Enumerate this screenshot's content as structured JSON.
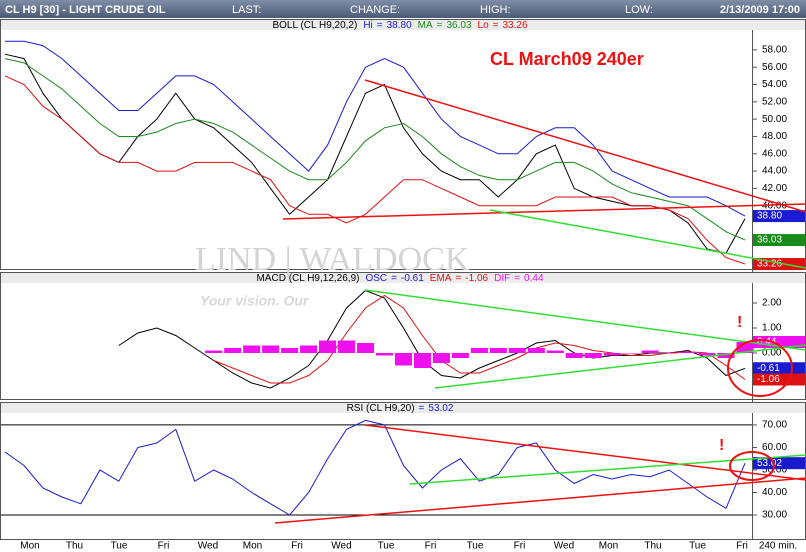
{
  "header": {
    "symbol": "CL H9 [30] - LIGHT CRUDE OIL",
    "fields": [
      "LAST:",
      "CHANGE:",
      "HIGH:",
      "LOW:"
    ],
    "datetime": "2/13/2009 17:00"
  },
  "watermark": [
    "LIND | WALDOCK",
    "Your vision. Our"
  ],
  "equals": "=",
  "x_axis": {
    "labels": [
      "Mon",
      "Thu",
      "Tue",
      "Fri",
      "Wed",
      "Mon",
      "Fri",
      "Wed",
      "Tue",
      "Fri",
      "Tue",
      "Fri",
      "Wed",
      "Mon",
      "Thu",
      "Tue",
      "Fri"
    ],
    "unit": "240 min."
  },
  "chart_data": [
    {
      "type": "line",
      "title": "BOLL (CL H9,20,2)",
      "annotation": "CL March09 240er",
      "ylim": [
        32.8,
        60.3
      ],
      "yticks": [
        {
          "value": 40,
          "label": "40.00"
        },
        {
          "value": 42,
          "label": "42.00"
        },
        {
          "value": 44,
          "label": "44.00"
        },
        {
          "value": 46,
          "label": "46.00"
        },
        {
          "value": 48,
          "label": "48.00"
        },
        {
          "value": 50,
          "label": "50.00"
        },
        {
          "value": 52,
          "label": "52.00"
        },
        {
          "value": 54,
          "label": "54.00"
        },
        {
          "value": 56,
          "label": "56.00"
        },
        {
          "value": 58,
          "label": "58.00"
        }
      ],
      "series": [
        {
          "values": [
            57.5,
            57,
            53,
            50,
            48,
            46,
            45,
            48,
            50,
            53,
            50,
            49,
            47,
            45,
            42,
            39,
            41,
            43,
            48,
            53,
            54,
            49,
            46,
            44,
            43,
            43,
            41,
            43,
            46,
            47,
            42,
            41,
            40.5,
            40,
            40,
            39.5,
            38,
            35,
            34.5,
            38.5
          ],
          "color": "#000000"
        },
        {
          "name": "Hi",
          "color": "#1a1ad0",
          "readout": {
            "value": 38.8,
            "label": "38.80"
          },
          "values": [
            59,
            59,
            58.5,
            57,
            55,
            53,
            51,
            51,
            53,
            55,
            55,
            54,
            52,
            50,
            48,
            46,
            44,
            47,
            52,
            56,
            57,
            56,
            53,
            50,
            48,
            47,
            46,
            46,
            48,
            49,
            49,
            47,
            44,
            43,
            42,
            41,
            41,
            41,
            40,
            38.8
          ]
        },
        {
          "name": "MA",
          "color": "#1a8a1a",
          "readout": {
            "value": 36.03,
            "label": "36.03"
          },
          "values": [
            57,
            56.5,
            55,
            53.5,
            51.5,
            49.5,
            48,
            48,
            48.5,
            49.5,
            50,
            49.5,
            48.5,
            47,
            45.5,
            44,
            43,
            43,
            45,
            47.5,
            49,
            49.5,
            48,
            46,
            44.5,
            43.5,
            43,
            43,
            44,
            45,
            45,
            44,
            42.5,
            41.5,
            41,
            40.5,
            40,
            38.5,
            37,
            36.03
          ]
        },
        {
          "name": "Lo",
          "color": "#dd1111",
          "readout": {
            "value": 33.26,
            "label": "33.26"
          },
          "values": [
            55,
            54,
            51.5,
            50,
            48,
            46,
            45,
            45,
            44,
            44,
            45,
            45,
            45,
            44,
            43,
            40,
            39,
            39,
            38,
            39,
            41,
            43,
            43,
            42,
            41,
            40,
            40,
            40,
            40,
            41,
            41,
            41,
            41,
            40,
            40,
            39.5,
            38.5,
            36,
            34,
            33.26
          ]
        }
      ]
    },
    {
      "type": "line",
      "title": "MACD (CL H9,12,26,9)",
      "annotation": "!",
      "ylim": [
        -1.8,
        2.8
      ],
      "yticks": [
        {
          "value": 2,
          "label": "2.00"
        },
        {
          "value": 1,
          "label": "1.00"
        },
        {
          "value": 0,
          "label": "0.00"
        }
      ],
      "series": [
        {
          "name": "OSC",
          "color": "#1a1ad0",
          "line_color": "#000000",
          "readout": {
            "value": -0.61,
            "label": "-0.61"
          },
          "values": [
            null,
            null,
            null,
            null,
            null,
            null,
            0.3,
            0.8,
            1.0,
            0.7,
            0.2,
            -0.3,
            -0.8,
            -1.2,
            -1.4,
            -1.0,
            -0.5,
            0.5,
            1.8,
            2.5,
            2.2,
            1.0,
            -0.3,
            -0.9,
            -1.0,
            -0.6,
            -0.3,
            0,
            0.4,
            0.5,
            0,
            -0.2,
            -0.1,
            -0.1,
            0,
            0,
            0.1,
            -0.2,
            -0.9,
            -0.61
          ]
        },
        {
          "name": "EMA",
          "color": "#dd1111",
          "readout": {
            "value": -1.06,
            "label": "-1.06"
          },
          "values": [
            null,
            null,
            null,
            null,
            null,
            null,
            null,
            null,
            null,
            null,
            null,
            -0.3,
            -0.6,
            -0.9,
            -1.2,
            -1.2,
            -0.9,
            -0.3,
            0.8,
            1.8,
            2.3,
            1.8,
            0.7,
            -0.3,
            -0.8,
            -0.8,
            -0.5,
            -0.2,
            0.2,
            0.4,
            0.3,
            0.1,
            0,
            -0.1,
            -0.1,
            0,
            0.05,
            0,
            -0.5,
            -1.06
          ]
        },
        {
          "name": "DIF",
          "color": "#ee11ee",
          "style": "histogram",
          "readout": {
            "value": 0.44,
            "label": "0.44"
          },
          "values": [
            null,
            null,
            null,
            null,
            null,
            null,
            null,
            null,
            null,
            null,
            null,
            0.1,
            0.2,
            0.3,
            0.3,
            0.2,
            0.3,
            0.5,
            0.5,
            0.4,
            -0.1,
            -0.5,
            -0.6,
            -0.4,
            -0.2,
            0.2,
            0.2,
            0.2,
            0.2,
            0.1,
            -0.2,
            -0.2,
            -0.1,
            0,
            0.1,
            0,
            0.05,
            -0.1,
            -0.2,
            0.44
          ]
        }
      ]
    },
    {
      "type": "line",
      "title": "RSI (CL H9,20)",
      "annotation": "!",
      "ylim": [
        19.8,
        75.3
      ],
      "yticks": [
        {
          "value": 70,
          "label": "70.00"
        },
        {
          "value": 60,
          "label": "60.00"
        },
        {
          "value": 50,
          "label": "50.00"
        },
        {
          "value": 40,
          "label": "40.00"
        },
        {
          "value": 30,
          "label": "30.00"
        }
      ],
      "reference_lines": [
        70,
        30
      ],
      "series": [
        {
          "color": "#1a1ad0",
          "readout": {
            "value": 53.02,
            "label": "53.02"
          },
          "values": [
            58,
            52,
            42,
            38,
            35,
            50,
            45,
            60,
            62,
            68,
            45,
            50,
            46,
            40,
            35,
            30,
            40,
            55,
            68,
            72,
            70,
            52,
            42,
            50,
            55,
            45,
            48,
            60,
            62,
            50,
            44,
            48,
            46,
            48,
            47,
            50,
            44,
            38,
            33,
            53.02
          ]
        }
      ]
    }
  ]
}
